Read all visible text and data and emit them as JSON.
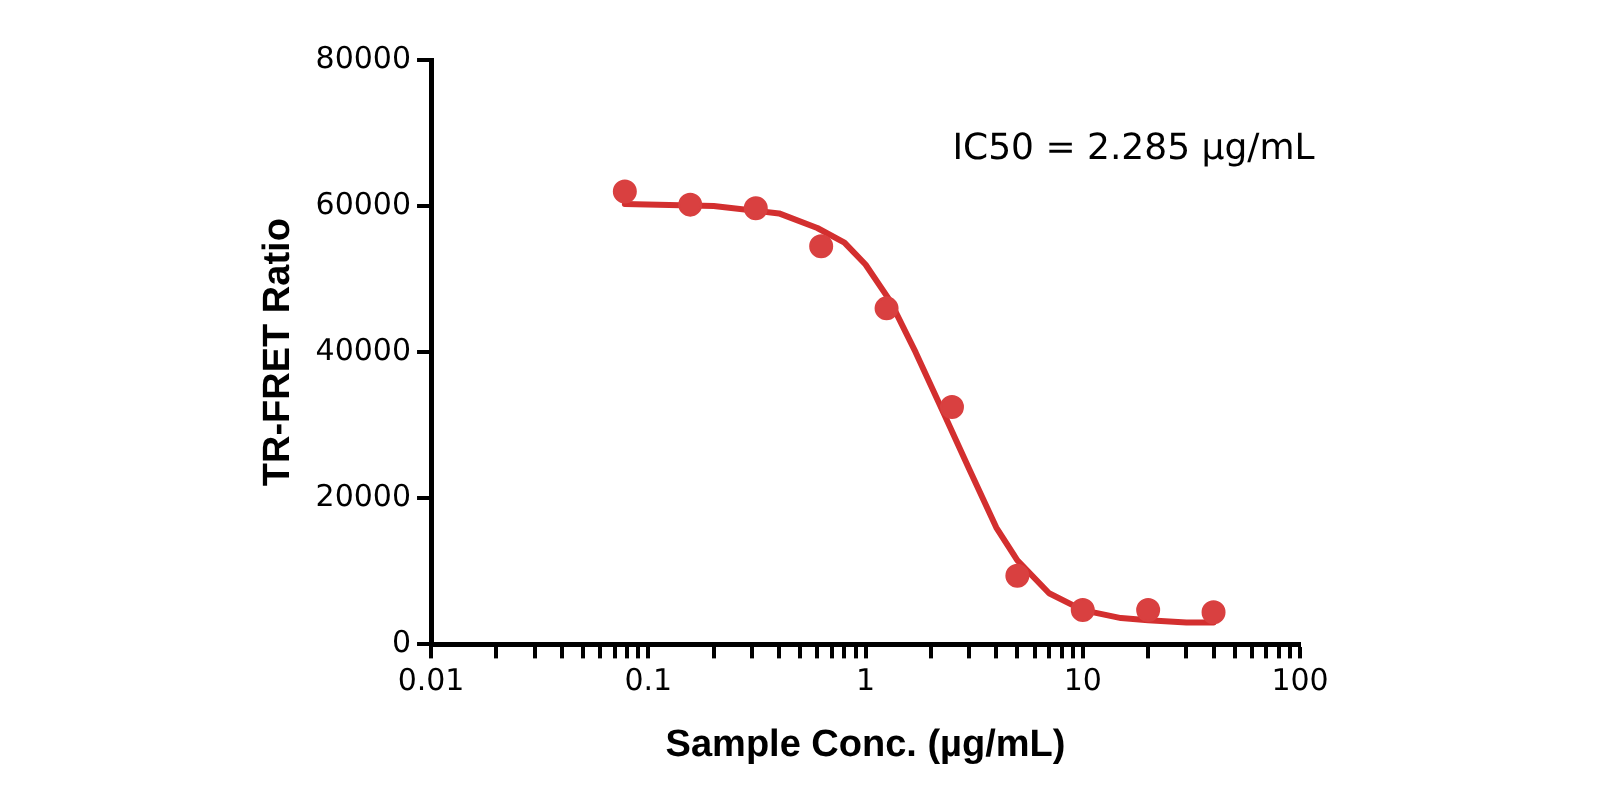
{
  "chart_data": {
    "type": "scatter",
    "xlabel": "Sample Conc. (µg/mL)",
    "ylabel": "TR-FRET Ratio",
    "log": "x",
    "grid": false,
    "legend": false,
    "marker": "circle",
    "annotations": [
      "IC50 = 2.285 µg/mL"
    ],
    "xlim": [
      0.01,
      100
    ],
    "xticks": [
      0.01,
      {
        "value": 0.02,
        "label": null
      },
      {
        "value": 0.03,
        "label": null
      },
      {
        "value": 0.04,
        "label": null
      },
      {
        "value": 0.05,
        "label": null
      },
      {
        "value": 0.06,
        "label": null
      },
      {
        "value": 0.07,
        "label": null
      },
      {
        "value": 0.08,
        "label": null
      },
      {
        "value": 0.09,
        "label": null
      },
      0.1,
      {
        "value": 0.2,
        "label": null
      },
      {
        "value": 0.3,
        "label": null
      },
      {
        "value": 0.4,
        "label": null
      },
      {
        "value": 0.5,
        "label": null
      },
      {
        "value": 0.6,
        "label": null
      },
      {
        "value": 0.7,
        "label": null
      },
      {
        "value": 0.8,
        "label": null
      },
      {
        "value": 0.9,
        "label": null
      },
      1,
      {
        "value": 2,
        "label": null
      },
      {
        "value": 3,
        "label": null
      },
      {
        "value": 4,
        "label": null
      },
      {
        "value": 5,
        "label": null
      },
      {
        "value": 6,
        "label": null
      },
      {
        "value": 7,
        "label": null
      },
      {
        "value": 8,
        "label": null
      },
      {
        "value": 9,
        "label": null
      },
      10,
      {
        "value": 20,
        "label": null
      },
      {
        "value": 30,
        "label": null
      },
      {
        "value": 40,
        "label": null
      },
      {
        "value": 50,
        "label": null
      },
      {
        "value": 60,
        "label": null
      },
      {
        "value": 70,
        "label": null
      },
      {
        "value": 80,
        "label": null
      },
      {
        "value": 90,
        "label": null
      },
      100
    ],
    "ylim": [
      0,
      80000
    ],
    "yticks": [
      0,
      20000,
      40000,
      60000,
      80000
    ],
    "series": [
      {
        "color": "#d94040",
        "x": [
          0.078,
          0.156,
          0.3125,
          0.625,
          1.25,
          2.5,
          5,
          10,
          20,
          40
        ],
        "values": [
          62000,
          60200,
          59700,
          54500,
          46000,
          32500,
          9400,
          4700,
          4700,
          4400
        ]
      },
      {
        "type": "line",
        "marker": "none",
        "color": "#d32f2f",
        "x": [
          0.078,
          0.2,
          0.4,
          0.6,
          0.8,
          1,
          1.3,
          1.7,
          2.285,
          3,
          4,
          5,
          7,
          10,
          15,
          20,
          30,
          40
        ],
        "values": [
          60300,
          60000,
          59000,
          57000,
          55000,
          52000,
          47000,
          40000,
          31700,
          24000,
          16000,
          11500,
          7000,
          4700,
          3600,
          3300,
          3000,
          3000
        ]
      }
    ]
  }
}
